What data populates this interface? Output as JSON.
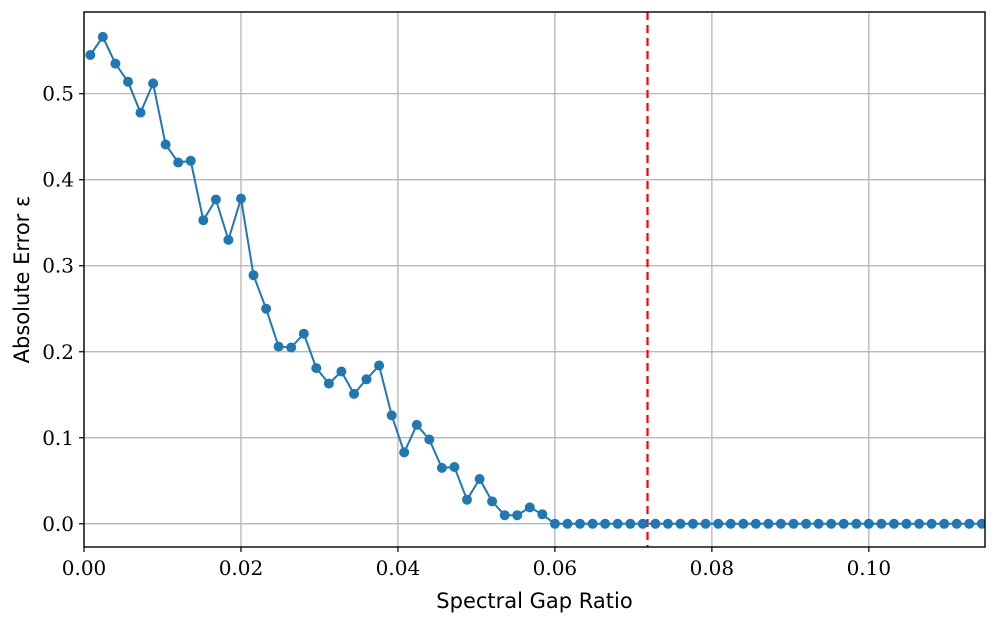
{
  "chart_data": {
    "type": "line",
    "xlabel": "Spectral Gap Ratio",
    "ylabel": "Absolute Error ε",
    "xlim": [
      0.0,
      0.1148
    ],
    "ylim": [
      -0.027,
      0.595
    ],
    "x_ticks": [
      0.0,
      0.02,
      0.04,
      0.06,
      0.08,
      0.1
    ],
    "x_tick_labels": [
      "0.00",
      "0.02",
      "0.04",
      "0.06",
      "0.08",
      "0.10"
    ],
    "y_ticks": [
      0.0,
      0.1,
      0.2,
      0.3,
      0.4,
      0.5
    ],
    "y_tick_labels": [
      "0.0",
      "0.1",
      "0.2",
      "0.3",
      "0.4",
      "0.5"
    ],
    "grid": true,
    "threshold_x": 0.0718,
    "colors": {
      "series": "#1f77b4",
      "threshold": "#ff0000",
      "grid": "#b0b0b0"
    },
    "series": [
      {
        "x": [
          0.0008,
          0.0024,
          0.004,
          0.0056,
          0.0072,
          0.0088,
          0.0104,
          0.012,
          0.0136,
          0.0152,
          0.0168,
          0.0184,
          0.02,
          0.0216,
          0.0232,
          0.0248,
          0.0264,
          0.028,
          0.0296,
          0.0312,
          0.0328,
          0.0344,
          0.036,
          0.0376,
          0.0392,
          0.0408,
          0.0424,
          0.044,
          0.0456,
          0.0472,
          0.0488,
          0.0504,
          0.052,
          0.0536,
          0.0552,
          0.0568,
          0.0584,
          0.06,
          0.0616,
          0.0632,
          0.0648,
          0.0664,
          0.068,
          0.0696,
          0.0712,
          0.0728,
          0.0744,
          0.076,
          0.0776,
          0.0792,
          0.0808,
          0.0824,
          0.084,
          0.0856,
          0.0872,
          0.0888,
          0.0904,
          0.092,
          0.0936,
          0.0952,
          0.0968,
          0.0984,
          0.1,
          0.1016,
          0.1032,
          0.1048,
          0.1064,
          0.108,
          0.1096,
          0.1112,
          0.1128,
          0.1144
        ],
        "values": [
          0.545,
          0.566,
          0.535,
          0.514,
          0.478,
          0.512,
          0.441,
          0.42,
          0.422,
          0.353,
          0.377,
          0.33,
          0.378,
          0.289,
          0.25,
          0.206,
          0.205,
          0.221,
          0.181,
          0.163,
          0.177,
          0.151,
          0.168,
          0.184,
          0.126,
          0.083,
          0.115,
          0.098,
          0.065,
          0.066,
          0.028,
          0.052,
          0.026,
          0.01,
          0.01,
          0.019,
          0.011,
          0.0,
          0.0,
          0.0,
          0.0,
          0.0,
          0.0,
          0.0,
          0.0,
          0.0,
          0.0,
          0.0,
          0.0,
          0.0,
          0.0,
          0.0,
          0.0,
          0.0,
          0.0,
          0.0,
          0.0,
          0.0,
          0.0,
          0.0,
          0.0,
          0.0,
          0.0,
          0.0,
          0.0,
          0.0,
          0.0,
          0.0,
          0.0,
          0.0,
          0.0,
          0.0
        ]
      }
    ]
  }
}
